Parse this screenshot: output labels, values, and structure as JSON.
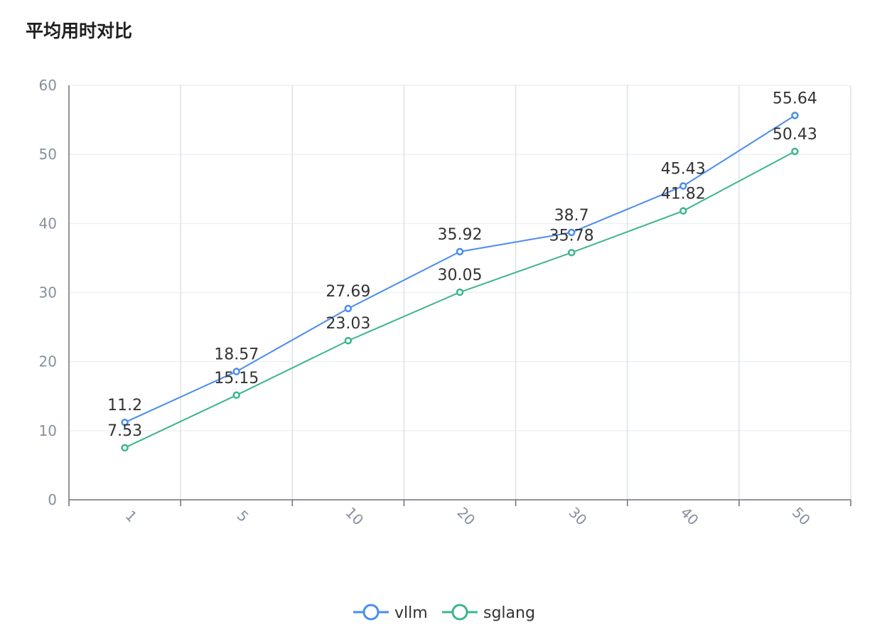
{
  "chart_data": {
    "type": "line",
    "title": "平均用时对比",
    "categories": [
      "1",
      "5",
      "10",
      "20",
      "30",
      "40",
      "50"
    ],
    "series": [
      {
        "name": "vllm",
        "values": [
          11.2,
          18.57,
          27.69,
          35.92,
          38.7,
          45.43,
          55.64
        ],
        "color": "#4a8ded"
      },
      {
        "name": "sglang",
        "values": [
          7.53,
          15.15,
          23.03,
          30.05,
          35.78,
          41.82,
          50.43
        ],
        "color": "#3db58a"
      }
    ],
    "ylim": [
      0,
      60
    ],
    "yticks": [
      0,
      10,
      20,
      30,
      40,
      50,
      60
    ],
    "xlabel": "",
    "ylabel": "",
    "grid": true,
    "legend": "bottom-center"
  }
}
